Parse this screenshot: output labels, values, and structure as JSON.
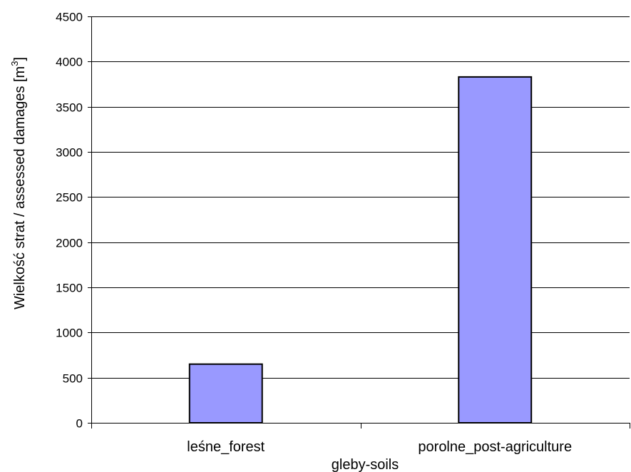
{
  "chart_data": {
    "type": "bar",
    "categories": [
      "leśne_forest",
      "porolne_post-agriculture"
    ],
    "series": [
      {
        "values": [
          650,
          3830
        ]
      }
    ],
    "xlabel": "gleby-soils",
    "ylabel_text": "Wielkość strat / assessed damages  [m",
    "ylabel_sup": "3",
    "ylabel_close": "]",
    "ylim": [
      0,
      4500
    ],
    "yticks": [
      0,
      500,
      1000,
      1500,
      2000,
      2500,
      3000,
      3500,
      4000,
      4500
    ],
    "grid": true,
    "legend": "none",
    "colors": {
      "bar_fill": "#9999ff",
      "bar_stroke": "#000000",
      "grid": "#000000",
      "axis": "#000000"
    }
  }
}
